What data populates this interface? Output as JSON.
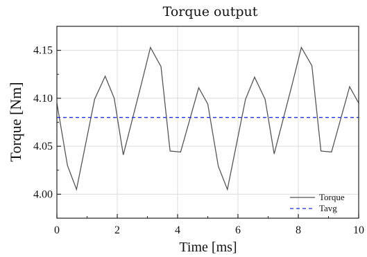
{
  "chart_data": {
    "type": "line",
    "title": "Torque output",
    "xlabel": "Time [ms]",
    "ylabel": "Torque [Nm]",
    "xlim": [
      0,
      10
    ],
    "ylim": [
      3.975,
      4.175
    ],
    "x_ticks": [
      0,
      2,
      4,
      6,
      8,
      10
    ],
    "y_ticks": [
      4.0,
      4.05,
      4.1,
      4.15
    ],
    "x_tick_labels": [
      "0",
      "2",
      "4",
      "6",
      "8",
      "10"
    ],
    "y_tick_labels": [
      "4.00",
      "4.05",
      "4.10",
      "4.15"
    ],
    "grid": true,
    "legend_position": "bottom-right",
    "series": [
      {
        "name": "Torque",
        "color": "#555555",
        "style": "solid",
        "x": [
          0,
          0.35,
          0.65,
          1.25,
          1.6,
          1.9,
          2.2,
          2.8,
          3.1,
          3.45,
          3.75,
          4.1,
          4.7,
          5.0,
          5.35,
          5.65,
          6.25,
          6.55,
          6.9,
          7.2,
          7.8,
          8.1,
          8.45,
          8.75,
          9.1,
          9.7,
          10
        ],
        "y": [
          4.095,
          4.03,
          4.005,
          4.099,
          4.123,
          4.1,
          4.041,
          4.115,
          4.153,
          4.133,
          4.045,
          4.044,
          4.111,
          4.094,
          4.029,
          4.005,
          4.099,
          4.122,
          4.099,
          4.042,
          4.115,
          4.153,
          4.134,
          4.045,
          4.044,
          4.112,
          4.095
        ]
      },
      {
        "name": "Tavg",
        "color": "#1f2fd6",
        "style": "dashed",
        "x": [
          0,
          10
        ],
        "y": [
          4.08,
          4.08
        ]
      }
    ]
  }
}
